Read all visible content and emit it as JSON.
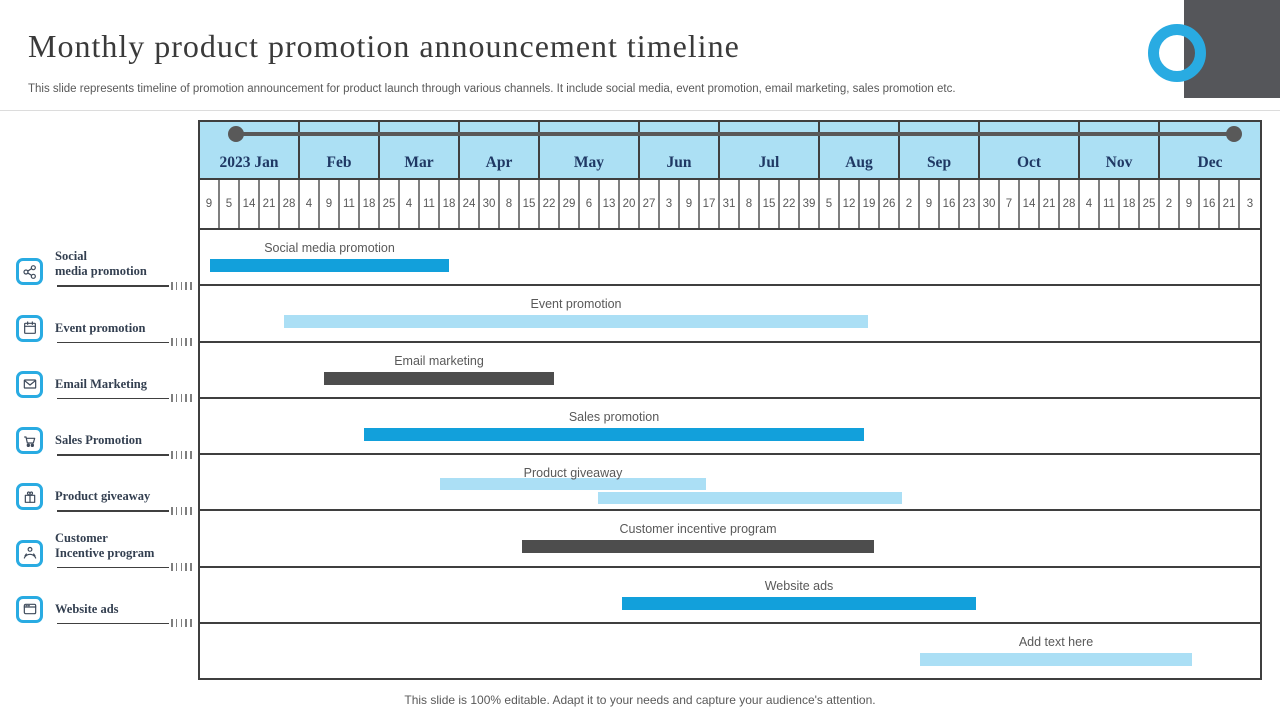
{
  "slide": {
    "title": "Monthly product promotion announcement timeline",
    "subtitle": "This slide represents timeline of promotion announcement for product launch through various channels. It include social media, event promotion, email marketing, sales promotion etc.",
    "footer": "This slide is 100% editable. Adapt it to your needs and capture your audience's attention."
  },
  "colors": {
    "accent_blue": "#12a0db",
    "light_blue": "#abdff5",
    "dark_gray_bar": "#4d4d4d",
    "header_bg": "#ace0f4",
    "ring_blue": "#29abe2",
    "logo_gray": "#55565a",
    "bar_colors": {
      "blue": "#12a0db",
      "light": "#abdff5",
      "dark": "#4d4d4d"
    }
  },
  "sidebar": {
    "items": [
      {
        "icon": "share-icon",
        "label_lines": [
          "Social",
          "media promotion"
        ]
      },
      {
        "icon": "calendar-icon",
        "label_lines": [
          "Event promotion"
        ]
      },
      {
        "icon": "email-icon",
        "label_lines": [
          "Email Marketing"
        ]
      },
      {
        "icon": "cart-icon",
        "label_lines": [
          "Sales Promotion"
        ]
      },
      {
        "icon": "gift-icon",
        "label_lines": [
          "Product giveaway"
        ]
      },
      {
        "icon": "incentive-icon",
        "label_lines": [
          "Customer",
          "Incentive program"
        ]
      },
      {
        "icon": "browser-icon",
        "label_lines": [
          "Website ads"
        ]
      }
    ]
  },
  "chart_data": {
    "type": "bar",
    "variant": "gantt-timeline",
    "title": "Monthly product promotion announcement timeline",
    "year": "2023",
    "total_columns": 53,
    "months": [
      {
        "label": "2023 Jan",
        "span": 5
      },
      {
        "label": "Feb",
        "span": 4
      },
      {
        "label": "Mar",
        "span": 4
      },
      {
        "label": "Apr",
        "span": 4
      },
      {
        "label": "May",
        "span": 5
      },
      {
        "label": "Jun",
        "span": 4
      },
      {
        "label": "Jul",
        "span": 5
      },
      {
        "label": "Aug",
        "span": 4
      },
      {
        "label": "Sep",
        "span": 4
      },
      {
        "label": "Oct",
        "span": 5
      },
      {
        "label": "Nov",
        "span": 4
      },
      {
        "label": "Dec",
        "span": 5
      }
    ],
    "date_ticks": [
      9,
      5,
      14,
      21,
      28,
      4,
      9,
      11,
      18,
      25,
      4,
      11,
      18,
      24,
      30,
      8,
      15,
      22,
      29,
      6,
      13,
      20,
      27,
      3,
      9,
      17,
      31,
      8,
      15,
      22,
      39,
      5,
      12,
      19,
      26,
      2,
      9,
      16,
      23,
      30,
      7,
      14,
      21,
      28,
      4,
      11,
      18,
      25,
      2,
      9,
      16,
      21,
      3
    ],
    "rows": [
      {
        "label": "Social media promotion",
        "bars": [
          {
            "start": 0.5,
            "end": 12.45,
            "color": "blue"
          }
        ]
      },
      {
        "label": "Event promotion",
        "bars": [
          {
            "start": 4.2,
            "end": 33.4,
            "color": "light"
          }
        ]
      },
      {
        "label": "Email marketing",
        "bars": [
          {
            "start": 6.2,
            "end": 17.7,
            "color": "dark"
          }
        ]
      },
      {
        "label": "Sales promotion",
        "bars": [
          {
            "start": 8.2,
            "end": 33.2,
            "color": "blue"
          }
        ]
      },
      {
        "label": "Product giveaway",
        "bars": [
          {
            "start": 12.0,
            "end": 25.3,
            "color": "light"
          },
          {
            "start": 19.9,
            "end": 35.1,
            "color": "light"
          }
        ]
      },
      {
        "label": "Customer incentive program",
        "bars": [
          {
            "start": 16.1,
            "end": 33.7,
            "color": "dark"
          }
        ]
      },
      {
        "label": "Website ads",
        "bars": [
          {
            "start": 21.1,
            "end": 38.8,
            "color": "blue"
          }
        ]
      },
      {
        "label": "Add text here",
        "bars": [
          {
            "start": 36.0,
            "end": 49.6,
            "color": "light"
          }
        ]
      }
    ]
  }
}
